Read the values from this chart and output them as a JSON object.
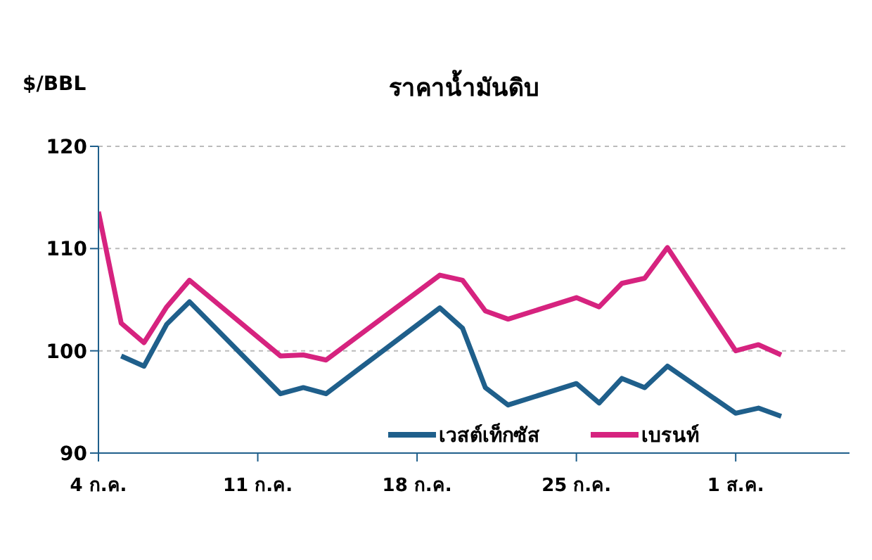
{
  "chart_data": {
    "type": "line",
    "title": "ราคาน้ำมันดิบ",
    "ylabel": "$/BBL",
    "x": [
      "--07-04",
      "--07-05",
      "--07-06",
      "--07-07",
      "--07-08",
      "--07-12",
      "--07-13",
      "--07-14",
      "--07-19",
      "--07-20",
      "--07-21",
      "--07-22",
      "--07-25",
      "--07-26",
      "--07-27",
      "--07-28",
      "--07-29",
      "--08-01",
      "--08-02",
      "--08-03"
    ],
    "series": [
      {
        "name": "เวสต์เท็กซัส",
        "color": "#1f5f8b",
        "values": [
          null,
          99.5,
          98.5,
          102.6,
          104.8,
          95.8,
          96.4,
          95.8,
          104.2,
          102.2,
          96.4,
          94.7,
          96.8,
          94.9,
          97.3,
          96.4,
          98.5,
          93.9,
          94.4,
          93.6
        ]
      },
      {
        "name": "เบรนท์",
        "color": "#d6237f",
        "values": [
          113.6,
          102.7,
          100.8,
          104.3,
          106.9,
          99.5,
          99.6,
          99.1,
          107.4,
          106.9,
          103.9,
          103.1,
          105.2,
          104.3,
          106.6,
          107.1,
          110.1,
          100.0,
          100.6,
          99.6
        ]
      }
    ],
    "xlim": [
      "--07-04",
      "--08-06"
    ],
    "xticks": [
      {
        "value": "--07-04",
        "label": "4 ก.ค."
      },
      {
        "value": "--07-11",
        "label": "11 ก.ค."
      },
      {
        "value": "--07-18",
        "label": "18 ก.ค."
      },
      {
        "value": "--07-25",
        "label": "25 ก.ค."
      },
      {
        "value": "--08-01",
        "label": "1 ส.ค."
      }
    ],
    "ylim": [
      90,
      120
    ],
    "yticks": [
      90,
      100,
      110,
      120
    ],
    "grid": "y",
    "legend": "bottom right",
    "marker": "none",
    "line_style": "solid"
  }
}
